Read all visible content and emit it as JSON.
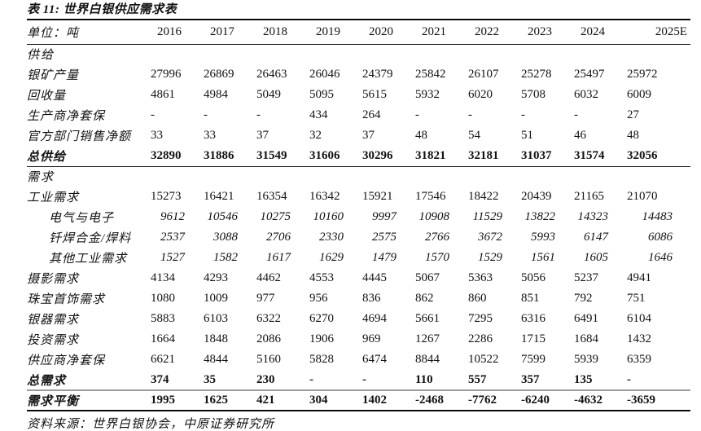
{
  "page": {
    "title": "表 11: 世界白银供应需求表",
    "source": "资料来源：世界白银协会，中原证券研究所"
  },
  "table": {
    "unit_label": "单位：吨",
    "years": [
      "2016",
      "2017",
      "2018",
      "2019",
      "2020",
      "2021",
      "2022",
      "2023",
      "2024",
      "2025E"
    ],
    "rows": [
      {
        "label": "供给",
        "style": "section",
        "rule_below": "",
        "values": [
          "",
          "",
          "",
          "",
          "",
          "",
          "",
          "",
          "",
          ""
        ]
      },
      {
        "label": "银矿产量",
        "style": "normal",
        "rule_below": "",
        "values": [
          "27996",
          "26869",
          "26463",
          "26046",
          "24379",
          "25842",
          "26107",
          "25278",
          "25497",
          "25972"
        ]
      },
      {
        "label": "回收量",
        "style": "normal",
        "rule_below": "",
        "values": [
          "4861",
          "4984",
          "5049",
          "5095",
          "5615",
          "5932",
          "6020",
          "5708",
          "6032",
          "6009"
        ]
      },
      {
        "label": "生产商净套保",
        "style": "normal",
        "rule_below": "",
        "values": [
          "-",
          "-",
          "-",
          "434",
          "264",
          "-",
          "-",
          "-",
          "-",
          "27"
        ]
      },
      {
        "label": "官方部门销售净额",
        "style": "normal",
        "rule_below": "",
        "values": [
          "33",
          "33",
          "37",
          "32",
          "37",
          "48",
          "54",
          "51",
          "46",
          "48"
        ]
      },
      {
        "label": "总供给",
        "style": "total",
        "rule_below": "thin",
        "values": [
          "32890",
          "31886",
          "31549",
          "31606",
          "30296",
          "31821",
          "32181",
          "31037",
          "31574",
          "32056"
        ]
      },
      {
        "label": "需求",
        "style": "section",
        "rule_below": "",
        "values": [
          "",
          "",
          "",
          "",
          "",
          "",
          "",
          "",
          "",
          ""
        ]
      },
      {
        "label": "工业需求",
        "style": "normal",
        "rule_below": "",
        "values": [
          "15273",
          "16421",
          "16354",
          "16342",
          "15921",
          "17546",
          "18422",
          "20439",
          "21165",
          "21070"
        ]
      },
      {
        "label": "电气与电子",
        "style": "sub",
        "rule_below": "",
        "values": [
          "9612",
          "10546",
          "10275",
          "10160",
          "9997",
          "10908",
          "11529",
          "13822",
          "14323",
          "14483"
        ]
      },
      {
        "label": "钎焊合金/焊料",
        "style": "sub",
        "rule_below": "",
        "values": [
          "2537",
          "3088",
          "2706",
          "2330",
          "2575",
          "2766",
          "3672",
          "5993",
          "6147",
          "6086"
        ]
      },
      {
        "label": "其他工业需求",
        "style": "sub",
        "rule_below": "",
        "values": [
          "1527",
          "1582",
          "1617",
          "1629",
          "1479",
          "1570",
          "1529",
          "1561",
          "1605",
          "1646"
        ]
      },
      {
        "label": "摄影需求",
        "style": "normal",
        "rule_below": "",
        "values": [
          "4134",
          "4293",
          "4462",
          "4553",
          "4445",
          "5067",
          "5363",
          "5056",
          "5237",
          "4941"
        ]
      },
      {
        "label": "珠宝首饰需求",
        "style": "normal",
        "rule_below": "",
        "values": [
          "1080",
          "1009",
          "977",
          "956",
          "836",
          "862",
          "860",
          "851",
          "792",
          "751"
        ]
      },
      {
        "label": "银器需求",
        "style": "normal",
        "rule_below": "",
        "values": [
          "5883",
          "6103",
          "6322",
          "6270",
          "4694",
          "5661",
          "7295",
          "6316",
          "6491",
          "6104"
        ]
      },
      {
        "label": "投资需求",
        "style": "normal",
        "rule_below": "",
        "values": [
          "1664",
          "1848",
          "2086",
          "1906",
          "969",
          "1267",
          "2286",
          "1715",
          "1684",
          "1432"
        ]
      },
      {
        "label": "供应商净套保",
        "style": "normal",
        "rule_below": "",
        "values": [
          "6621",
          "4844",
          "5160",
          "5828",
          "6474",
          "8844",
          "10522",
          "7599",
          "5939",
          "6359"
        ]
      },
      {
        "label": "总需求",
        "style": "total",
        "rule_below": "gray",
        "values": [
          "374",
          "35",
          "230",
          "-",
          "-",
          "110",
          "557",
          "357",
          "135",
          "-"
        ]
      },
      {
        "label": "需求平衡",
        "style": "total",
        "rule_below": "thick",
        "values": [
          "1995",
          "1625",
          "421",
          "304",
          "1402",
          "-2468",
          "-7762",
          "-6240",
          "-4632",
          "-3659"
        ]
      }
    ]
  }
}
